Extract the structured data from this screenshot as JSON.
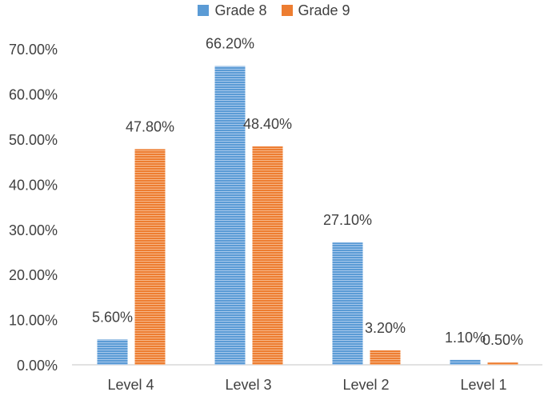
{
  "chart_data": {
    "type": "bar",
    "categories": [
      "Level 4",
      "Level 3",
      "Level 2",
      "Level 1"
    ],
    "series": [
      {
        "name": "Grade 8",
        "values": [
          5.6,
          66.2,
          27.1,
          1.1
        ],
        "labels": [
          "5.60%",
          "66.20%",
          "27.10%",
          "1.10%"
        ],
        "color": "#5b9bd5"
      },
      {
        "name": "Grade 9",
        "values": [
          47.8,
          48.4,
          3.2,
          0.5
        ],
        "labels": [
          "47.80%",
          "48.40%",
          "3.20%",
          "0.50%"
        ],
        "color": "#ed7d31"
      }
    ],
    "yticks": [
      0,
      10,
      20,
      30,
      40,
      50,
      60,
      70
    ],
    "ytick_labels": [
      "0.00%",
      "10.00%",
      "20.00%",
      "30.00%",
      "40.00%",
      "50.00%",
      "60.00%",
      "70.00%"
    ],
    "ylim": [
      0,
      70
    ],
    "title": "",
    "xlabel": "",
    "ylabel": "",
    "grid": false,
    "legend_position": "top-center"
  }
}
